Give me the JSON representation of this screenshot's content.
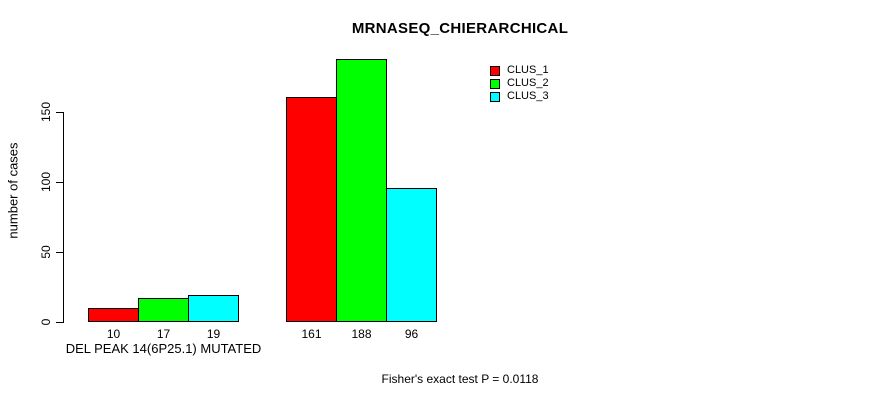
{
  "chart_data": {
    "type": "bar",
    "title": "MRNASEQ_CHIERARCHICAL",
    "ylabel": "number of cases",
    "xlabel": "",
    "ylim": [
      0,
      190
    ],
    "yticks": [
      0,
      50,
      100,
      150
    ],
    "grid": false,
    "legend_position": "top-right-inside",
    "categories": [
      "DEL PEAK 14(6P25.1) MUTATED",
      ""
    ],
    "series": [
      {
        "name": "CLUS_1",
        "color": "#ff0000",
        "values": [
          10,
          161
        ]
      },
      {
        "name": "CLUS_2",
        "color": "#00ff00",
        "values": [
          17,
          188
        ]
      },
      {
        "name": "CLUS_3",
        "color": "#00ffff",
        "values": [
          19,
          96
        ]
      }
    ],
    "bar_value_labels": [
      [
        10,
        17,
        19
      ],
      [
        161,
        188,
        96
      ]
    ],
    "annotation": "Fisher's exact test P = 0.0118"
  },
  "colors": {
    "clus_1": "#ff0000",
    "clus_2": "#00ff00",
    "clus_3": "#00ffff",
    "axis": "#000000",
    "background": "#ffffff"
  }
}
